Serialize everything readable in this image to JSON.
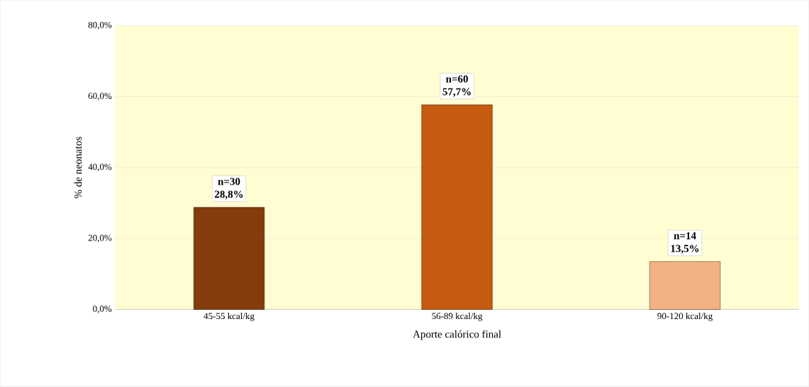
{
  "chart_data": {
    "type": "bar",
    "xlabel": "Aporte calórico final",
    "ylabel": "% de neonatos",
    "categories": [
      "45-55 kcal/kg",
      "56-89 kcal/kg",
      "90-120 kcal/kg"
    ],
    "values": [
      28.8,
      57.7,
      13.5
    ],
    "colors": [
      "#843c0c",
      "#c55a11",
      "#f4b183"
    ],
    "value_labels": [
      "28,8%",
      "57,7%",
      "13,5%"
    ],
    "annotations": [
      {
        "text": "n=30",
        "x": "45-55 kcal/kg",
        "y": 28.8
      },
      {
        "text": "n=60",
        "x": "56-89 kcal/kg",
        "y": 57.7
      },
      {
        "text": "n=14",
        "x": "90-120 kcal/kg",
        "y": 13.5
      }
    ],
    "ylim": [
      0,
      80
    ],
    "yticks": [
      {
        "value": 0,
        "label": "0,0%"
      },
      {
        "value": 20,
        "label": "20,0%"
      },
      {
        "value": 40,
        "label": "40,0%"
      },
      {
        "value": 60,
        "label": "60,0%"
      },
      {
        "value": 80,
        "label": "80,0%"
      }
    ],
    "grid": "y"
  }
}
